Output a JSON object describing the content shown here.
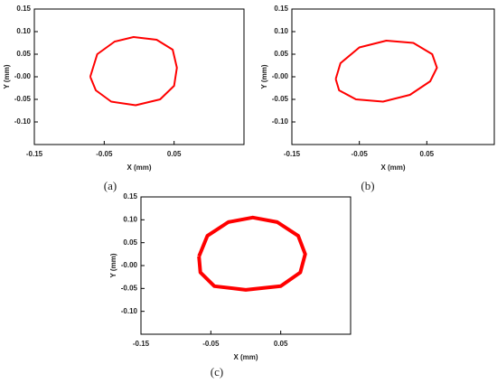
{
  "chart_data": [
    {
      "type": "line",
      "caption": "(a)",
      "xlabel": "X (mm)",
      "ylabel": "Y (mm)",
      "xlim": [
        -0.15,
        0.15
      ],
      "ylim": [
        -0.15,
        0.15
      ],
      "xticks": [
        -0.15,
        -0.05,
        0.05
      ],
      "yticks": [
        0.15,
        {
          "value": 0.1,
          "label": "0.10"
        },
        0.05,
        {
          "value": 0,
          "label": "-0.00"
        },
        -0.05,
        {
          "value": -0.1,
          "label": "-0.10"
        }
      ],
      "x": [
        -0.07,
        -0.06,
        -0.035,
        -0.008,
        0.025,
        0.048,
        0.054,
        0.05,
        0.03,
        -0.005,
        -0.04,
        -0.062,
        -0.07
      ],
      "series": [
        {
          "color": "#ff0000",
          "values": [
            0.0,
            0.05,
            0.078,
            0.088,
            0.082,
            0.06,
            0.02,
            -0.02,
            -0.05,
            -0.063,
            -0.055,
            -0.03,
            0.0
          ]
        }
      ]
    },
    {
      "type": "line",
      "caption": "(b)",
      "xlabel": "X (mm)",
      "ylabel": "Y (mm)",
      "xlim": [
        -0.15,
        0.15
      ],
      "ylim": [
        -0.15,
        0.15
      ],
      "xticks": [
        -0.15,
        -0.05,
        0.05
      ],
      "yticks": [
        0.15,
        {
          "value": 0.1,
          "label": "0.10"
        },
        0.05,
        {
          "value": 0,
          "label": "-0.00"
        },
        -0.05,
        {
          "value": -0.1,
          "label": "-0.10"
        }
      ],
      "x": [
        -0.085,
        -0.078,
        -0.05,
        -0.01,
        0.03,
        0.058,
        0.065,
        0.055,
        0.025,
        -0.015,
        -0.055,
        -0.08,
        -0.085
      ],
      "series": [
        {
          "color": "#ff0000",
          "values": [
            -0.005,
            0.03,
            0.065,
            0.08,
            0.075,
            0.05,
            0.02,
            -0.01,
            -0.04,
            -0.055,
            -0.05,
            -0.03,
            -0.005
          ]
        }
      ]
    },
    {
      "type": "line",
      "caption": "(c)",
      "xlabel": "X (mm)",
      "ylabel": "Y (mm)",
      "xlim": [
        -0.15,
        0.15
      ],
      "ylim": [
        -0.15,
        0.15
      ],
      "xticks": [
        -0.15,
        -0.05,
        0.05
      ],
      "yticks": [
        0.15,
        {
          "value": 0.1,
          "label": "0.10"
        },
        0.05,
        {
          "value": 0,
          "label": "-0.00"
        },
        -0.05,
        {
          "value": -0.1,
          "label": "-0.10"
        }
      ],
      "x": [
        -0.067,
        -0.055,
        -0.025,
        0.01,
        0.045,
        0.075,
        0.085,
        0.078,
        0.05,
        0.0,
        -0.045,
        -0.065,
        -0.067
      ],
      "series": [
        {
          "color": "#ff0000",
          "values": [
            0.02,
            0.065,
            0.095,
            0.105,
            0.095,
            0.065,
            0.025,
            -0.015,
            -0.045,
            -0.053,
            -0.045,
            -0.015,
            0.02
          ]
        }
      ]
    }
  ]
}
